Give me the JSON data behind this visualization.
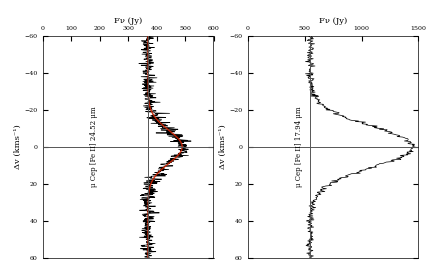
{
  "panel1": {
    "label": "μ Cep [Fe II] 24.52 μm",
    "top_label": "Fν (Jy)",
    "side_label": "Δv (kms⁻¹)",
    "vlim": [
      -60,
      60
    ],
    "flim": [
      0,
      600
    ],
    "fticks": [
      0,
      100,
      200,
      300,
      400,
      500,
      600
    ],
    "vticks": [
      -60,
      -40,
      -20,
      0,
      20,
      40,
      60
    ],
    "continuum": 370,
    "peak": 490,
    "peak_v": 0,
    "sigma": 9,
    "noise_amplitude": 12,
    "line_color": "#000000",
    "fit_color": "#cc2200",
    "n_points": 600
  },
  "panel2": {
    "label": "μ Cep [Fe II] 17.94 μm",
    "top_label": "Fν (Jy)",
    "side_label": "Δv (kms⁻¹)",
    "vlim": [
      -60,
      60
    ],
    "flim": [
      0,
      1500
    ],
    "fticks": [
      0,
      500,
      1000,
      1500
    ],
    "vticks": [
      -60,
      -40,
      -20,
      0,
      20,
      40,
      60
    ],
    "continuum": 550,
    "peak": 1450,
    "peak_v": 0,
    "sigma": 11,
    "noise_amplitude": 15,
    "line_color": "#000000",
    "n_points": 400
  },
  "background_color": "#ffffff",
  "crosshair_color": "#555555",
  "figsize": [
    4.27,
    2.77
  ],
  "dpi": 100,
  "font_family": "serif",
  "tick_fontsize": 4.5,
  "label_fontsize": 6.0,
  "annot_fontsize": 5.0
}
